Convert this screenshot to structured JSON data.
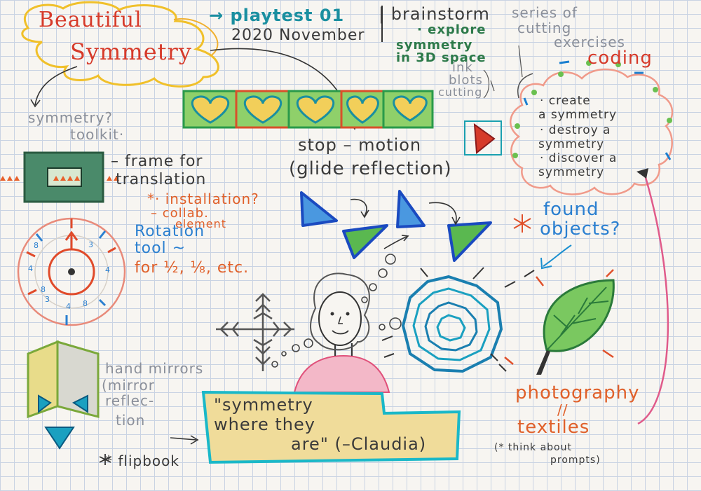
{
  "title": {
    "line1": "Beautiful",
    "line2": "Symmetry"
  },
  "header": {
    "playtest": "→ playtest 01",
    "date": "2020 November",
    "brainstorm": "| brainstorm"
  },
  "brainstorm_items": {
    "explore1": "· explore",
    "explore2": "symmetry",
    "explore3": "in 3D space",
    "series1": "series of",
    "series2": "cutting",
    "series3": "exercises",
    "ink1": "ink",
    "ink2": "blots",
    "cutting": "cutting"
  },
  "coding": {
    "title": "coding",
    "items": [
      "· create",
      "a symmetry",
      "· destroy a",
      "symmetry",
      "· discover a",
      "symmetry"
    ]
  },
  "toolkit": {
    "line1": "symmetry?",
    "line2": "toolkit·"
  },
  "frame": {
    "line1": "– frame for",
    "line2": "translation"
  },
  "installation": {
    "line1": "*· installation?",
    "line2": "– collab.",
    "line3": "element"
  },
  "stop_motion": {
    "line1": "stop – motion",
    "line2": "(glide reflection)"
  },
  "rotation": {
    "line1": "Rotation",
    "line2": "tool ~",
    "line3": "for ½, ⅛, etc."
  },
  "found": {
    "line1": "found",
    "line2": "objects?"
  },
  "mirrors": {
    "line1": "hand mirrors",
    "line2": "(mirror",
    "line3": "reflec-",
    "line4": "tion"
  },
  "quote": {
    "line1": "\"symmetry",
    "line2": "where they",
    "line3": "are\" (–Claudia)"
  },
  "flipbook": "* flipbook",
  "photography": {
    "line1": "photography",
    "line2": "//",
    "line3": "textiles"
  },
  "prompts": {
    "line1": "(* think about",
    "line2": "prompts)"
  },
  "dial_numbers": [
    "8",
    "3",
    "4",
    "8",
    "4",
    "4",
    "8",
    "3"
  ],
  "colors": {
    "red": "#d63a2a",
    "teal": "#1a8fa0",
    "blue": "#2a7fd0",
    "yellow": "#f2cf5a",
    "green": "#3aa84a",
    "pink": "#e05a8a"
  }
}
